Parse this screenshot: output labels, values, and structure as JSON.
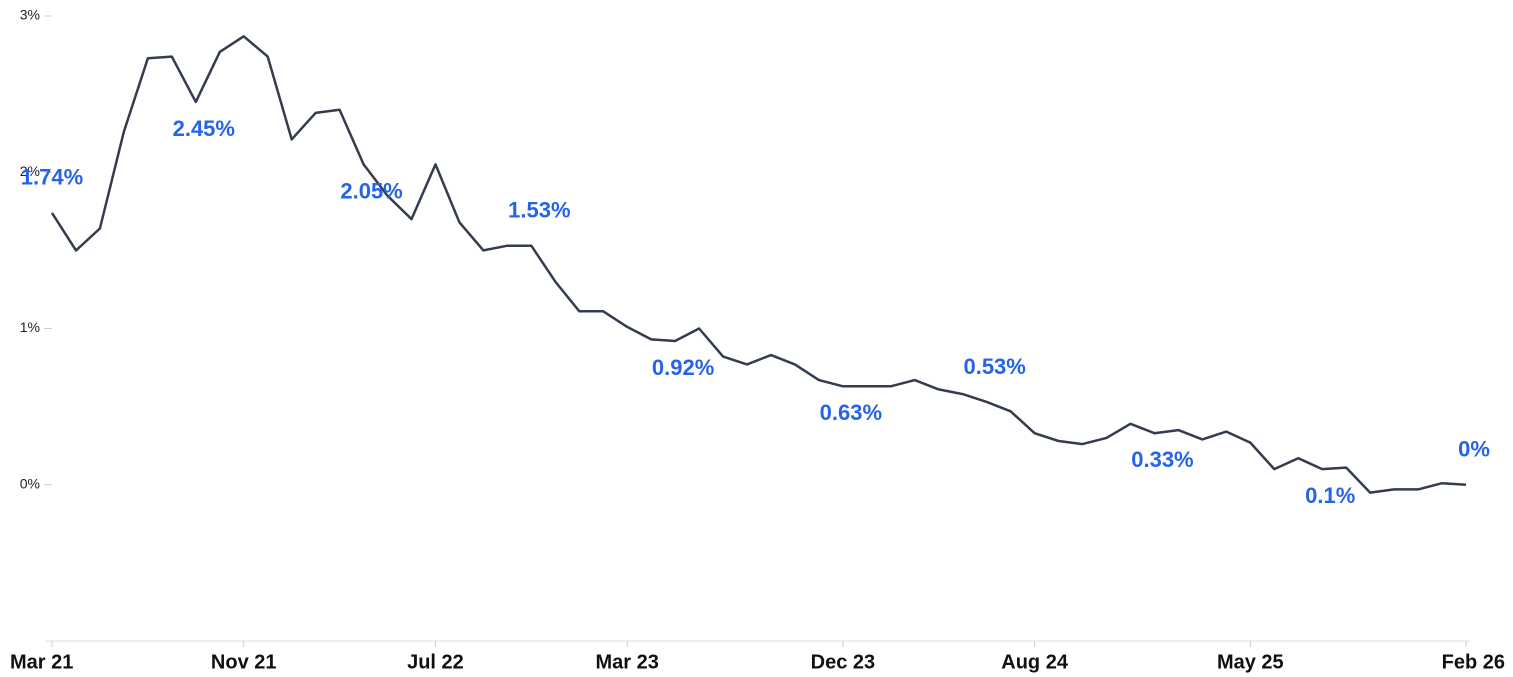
{
  "chart_data": {
    "type": "line",
    "categories": [
      "Mar 21",
      null,
      null,
      null,
      null,
      null,
      null,
      null,
      "Nov 21",
      null,
      null,
      null,
      null,
      null,
      null,
      null,
      "Jul 22",
      null,
      null,
      null,
      null,
      null,
      null,
      null,
      "Mar 23",
      null,
      null,
      null,
      null,
      null,
      null,
      null,
      null,
      "Dec 23",
      null,
      null,
      null,
      null,
      null,
      null,
      null,
      "Aug 24",
      null,
      null,
      null,
      null,
      null,
      null,
      null,
      null,
      "May 25",
      null,
      null,
      null,
      null,
      null,
      null,
      null,
      null,
      "Feb 26"
    ],
    "series": [
      {
        "color": "#333d4f",
        "values": [
          1.74,
          1.5,
          1.64,
          2.26,
          2.73,
          2.74,
          2.45,
          2.77,
          2.87,
          2.74,
          2.21,
          2.38,
          2.4,
          2.05,
          1.85,
          1.7,
          2.05,
          1.68,
          1.5,
          1.53,
          1.53,
          1.3,
          1.11,
          1.11,
          1.01,
          0.93,
          0.92,
          1.0,
          0.82,
          0.77,
          0.83,
          0.77,
          0.67,
          0.63,
          0.63,
          0.63,
          0.67,
          0.61,
          0.58,
          0.53,
          0.47,
          0.33,
          0.28,
          0.26,
          0.3,
          0.39,
          0.33,
          0.35,
          0.29,
          0.34,
          0.27,
          0.1,
          0.17,
          0.1,
          0.11,
          -0.05,
          -0.03,
          -0.03,
          0.01,
          0.0
        ],
        "value_labels": [
          "1.74%",
          null,
          null,
          null,
          null,
          null,
          "2.45%",
          null,
          null,
          null,
          null,
          null,
          null,
          "2.05%",
          null,
          null,
          null,
          null,
          null,
          null,
          "1.53%",
          null,
          null,
          null,
          null,
          null,
          "0.92%",
          null,
          null,
          null,
          null,
          null,
          null,
          "0.63%",
          null,
          null,
          null,
          null,
          null,
          "0.53%",
          null,
          null,
          null,
          null,
          null,
          null,
          "0.33%",
          null,
          null,
          null,
          null,
          null,
          null,
          "0.1%",
          null,
          null,
          null,
          null,
          null,
          "0%"
        ]
      }
    ],
    "ylim": [
      -1,
      3
    ],
    "yticks": [
      {
        "value": 0,
        "label": "0%"
      },
      {
        "value": 1,
        "label": "1%"
      },
      {
        "value": 2,
        "label": "2%"
      },
      {
        "value": 3,
        "label": "3%"
      }
    ],
    "label_color": "#2563eb"
  }
}
